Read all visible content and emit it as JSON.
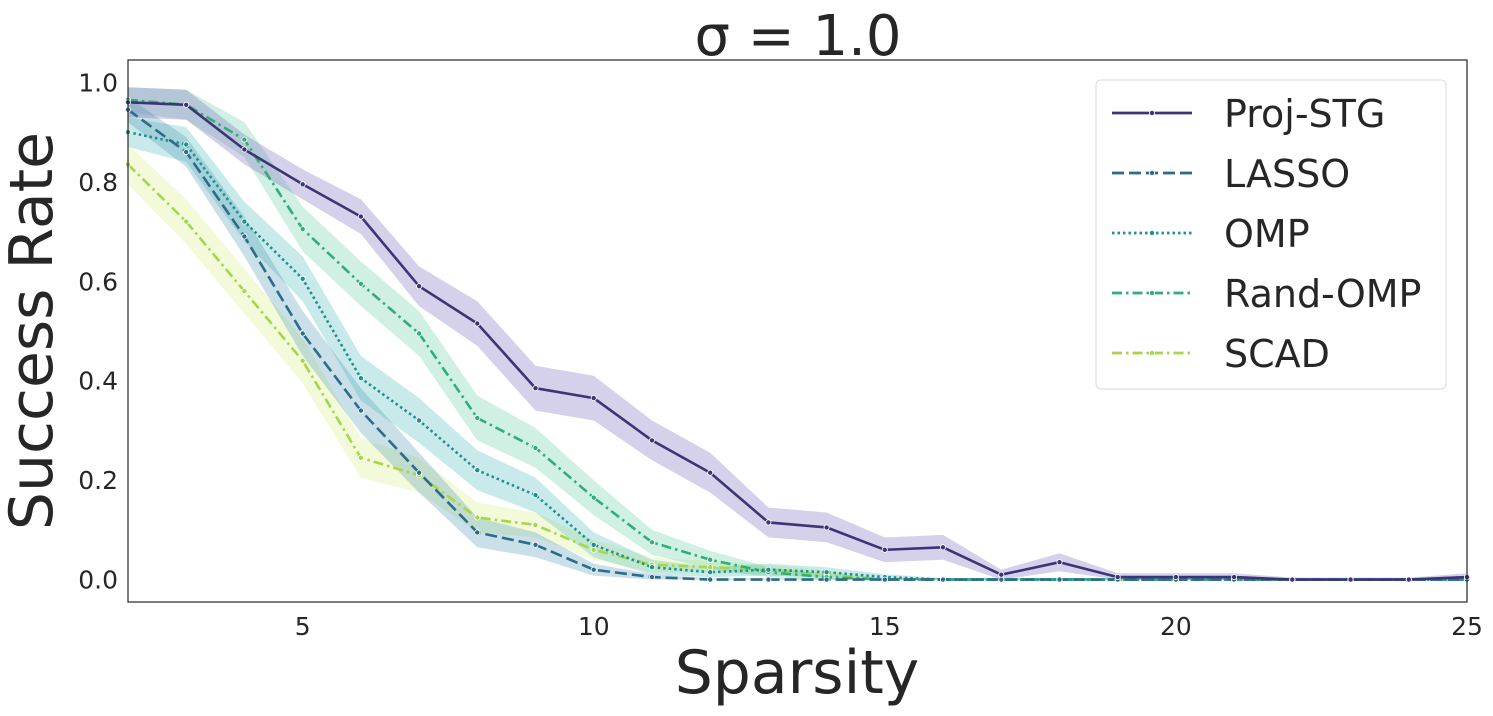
{
  "chart_data": {
    "type": "line",
    "title": "σ = 1.0",
    "xlabel": "Sparsity",
    "ylabel": "Success Rate",
    "xlim": [
      2,
      25
    ],
    "ylim": [
      -0.045,
      1.045
    ],
    "xticks": [
      5,
      10,
      15,
      20,
      25
    ],
    "xtick_labels": [
      "5",
      "10",
      "15",
      "20",
      "25"
    ],
    "yticks": [
      0.0,
      0.2,
      0.4,
      0.6,
      0.8,
      1.0
    ],
    "ytick_labels": [
      "0.0",
      "0.2",
      "0.4",
      "0.6",
      "0.8",
      "1.0"
    ],
    "grid": false,
    "legend_position": "upper right",
    "x": [
      2,
      3,
      4,
      5,
      6,
      7,
      8,
      9,
      10,
      11,
      12,
      13,
      14,
      15,
      16,
      17,
      18,
      19,
      20,
      21,
      22,
      23,
      24,
      25
    ],
    "series": [
      {
        "name": "Proj-STG",
        "color": "#3b3575",
        "band_color": "#6a5bb8",
        "dash": "solid",
        "values": [
          0.96,
          0.955,
          0.865,
          0.795,
          0.73,
          0.59,
          0.515,
          0.385,
          0.365,
          0.28,
          0.215,
          0.115,
          0.105,
          0.06,
          0.065,
          0.01,
          0.035,
          0.005,
          0.005,
          0.005,
          0.0,
          0.0,
          0.0,
          0.005
        ],
        "ci": [
          0.03,
          0.03,
          0.03,
          0.03,
          0.035,
          0.04,
          0.045,
          0.045,
          0.045,
          0.04,
          0.04,
          0.03,
          0.03,
          0.025,
          0.025,
          0.01,
          0.018,
          0.008,
          0.008,
          0.008,
          0.004,
          0.004,
          0.004,
          0.008
        ]
      },
      {
        "name": "LASSO",
        "color": "#2c6b8a",
        "band_color": "#3f8fb0",
        "dash": "dashed",
        "values": [
          0.945,
          0.86,
          0.69,
          0.495,
          0.34,
          0.215,
          0.095,
          0.07,
          0.02,
          0.005,
          0.0,
          0.0,
          0.0,
          0.0,
          0.0,
          0.0,
          0.0,
          0.0,
          0.0,
          0.0,
          0.0,
          0.0,
          0.0,
          0.0
        ],
        "ci": [
          0.025,
          0.03,
          0.04,
          0.045,
          0.045,
          0.04,
          0.03,
          0.025,
          0.012,
          0.006,
          0.003,
          0.003,
          0.003,
          0.003,
          0.003,
          0.003,
          0.003,
          0.003,
          0.003,
          0.003,
          0.003,
          0.003,
          0.003,
          0.003
        ]
      },
      {
        "name": "OMP",
        "color": "#1f8f90",
        "band_color": "#3cb4b4",
        "dash": "dotted",
        "values": [
          0.9,
          0.875,
          0.72,
          0.605,
          0.405,
          0.32,
          0.22,
          0.17,
          0.07,
          0.025,
          0.015,
          0.02,
          0.015,
          0.005,
          0.0,
          0.0,
          0.0,
          0.0,
          0.0,
          0.0,
          0.0,
          0.0,
          0.0,
          0.0
        ],
        "ci": [
          0.03,
          0.035,
          0.04,
          0.045,
          0.045,
          0.045,
          0.04,
          0.035,
          0.025,
          0.015,
          0.01,
          0.012,
          0.01,
          0.006,
          0.003,
          0.003,
          0.003,
          0.003,
          0.003,
          0.003,
          0.003,
          0.003,
          0.003,
          0.003
        ]
      },
      {
        "name": "Rand-OMP",
        "color": "#2fae7a",
        "band_color": "#56c99a",
        "dash": "dashdot",
        "values": [
          0.965,
          0.955,
          0.885,
          0.705,
          0.595,
          0.495,
          0.325,
          0.265,
          0.165,
          0.075,
          0.04,
          0.015,
          0.005,
          0.0,
          0.0,
          0.0,
          0.0,
          0.0,
          0.0,
          0.0,
          0.0,
          0.0,
          0.0,
          0.0
        ],
        "ci": [
          0.025,
          0.03,
          0.035,
          0.045,
          0.045,
          0.045,
          0.045,
          0.04,
          0.035,
          0.025,
          0.018,
          0.01,
          0.006,
          0.003,
          0.003,
          0.003,
          0.003,
          0.003,
          0.003,
          0.003,
          0.003,
          0.003,
          0.003,
          0.003
        ]
      },
      {
        "name": "SCAD",
        "color": "#a8d64a",
        "band_color": "#d2ec7a",
        "dash": "dashdot",
        "values": [
          0.835,
          0.72,
          0.58,
          0.44,
          0.245,
          0.21,
          0.125,
          0.11,
          0.06,
          0.03,
          0.025,
          0.02,
          0.01,
          0.0,
          0.0,
          0.0,
          0.0,
          0.0,
          0.0,
          0.0,
          0.0,
          0.0,
          0.0,
          0.0
        ],
        "ci": [
          0.04,
          0.045,
          0.045,
          0.045,
          0.04,
          0.035,
          0.03,
          0.025,
          0.02,
          0.015,
          0.012,
          0.01,
          0.008,
          0.003,
          0.003,
          0.003,
          0.003,
          0.003,
          0.003,
          0.003,
          0.003,
          0.003,
          0.003,
          0.003
        ]
      }
    ]
  }
}
